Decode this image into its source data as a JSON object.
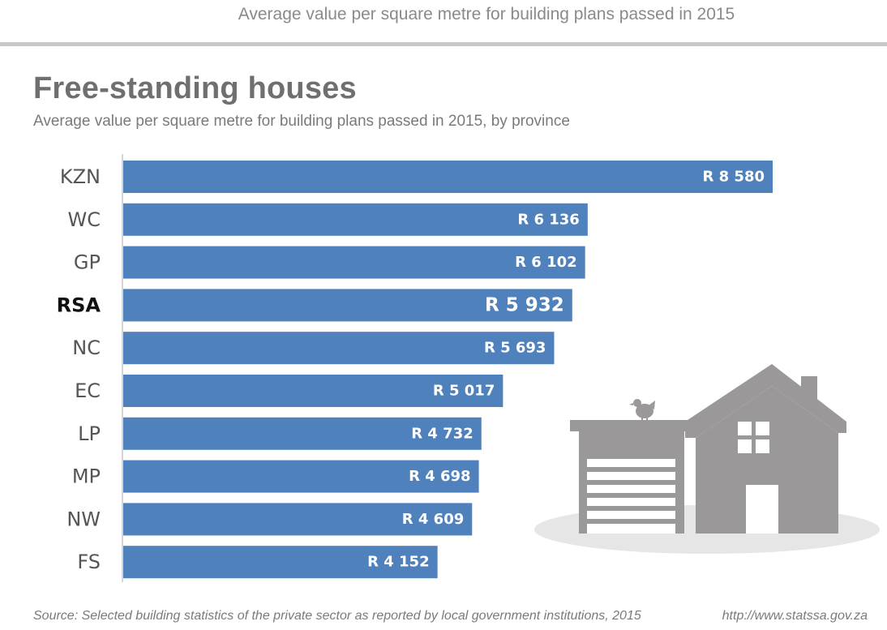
{
  "header": {
    "top_title": "Average value per square metre for building plans passed in 2015"
  },
  "chart_data": {
    "type": "bar",
    "orientation": "horizontal",
    "title": "Free-standing houses",
    "subtitle": "Average value per square metre for building plans passed in 2015, by province",
    "categories": [
      "KZN",
      "WC",
      "GP",
      "RSA",
      "NC",
      "EC",
      "LP",
      "MP",
      "NW",
      "FS"
    ],
    "values": [
      8580,
      6136,
      6102,
      5932,
      5693,
      5017,
      4732,
      4698,
      4609,
      4152
    ],
    "value_labels": [
      "R 8 580",
      "R 6 136",
      "R 6 102",
      "R 5 932",
      "R 5 693",
      "R 5 017",
      "R 4 732",
      "R 4 698",
      "R 4 609",
      "R 4 152"
    ],
    "highlight_category": "RSA",
    "xlim": [
      0,
      8580
    ],
    "grid": false,
    "bar_color": "#4f81bd"
  },
  "footer": {
    "source": "Source: Selected building statistics of the private sector as reported by local government institutions, 2015",
    "url": "http://www.statssa.gov.za"
  },
  "illustration": {
    "icon": "house-with-garage-icon",
    "color": "#9a9898",
    "shadow_color": "#e6e6e6"
  }
}
